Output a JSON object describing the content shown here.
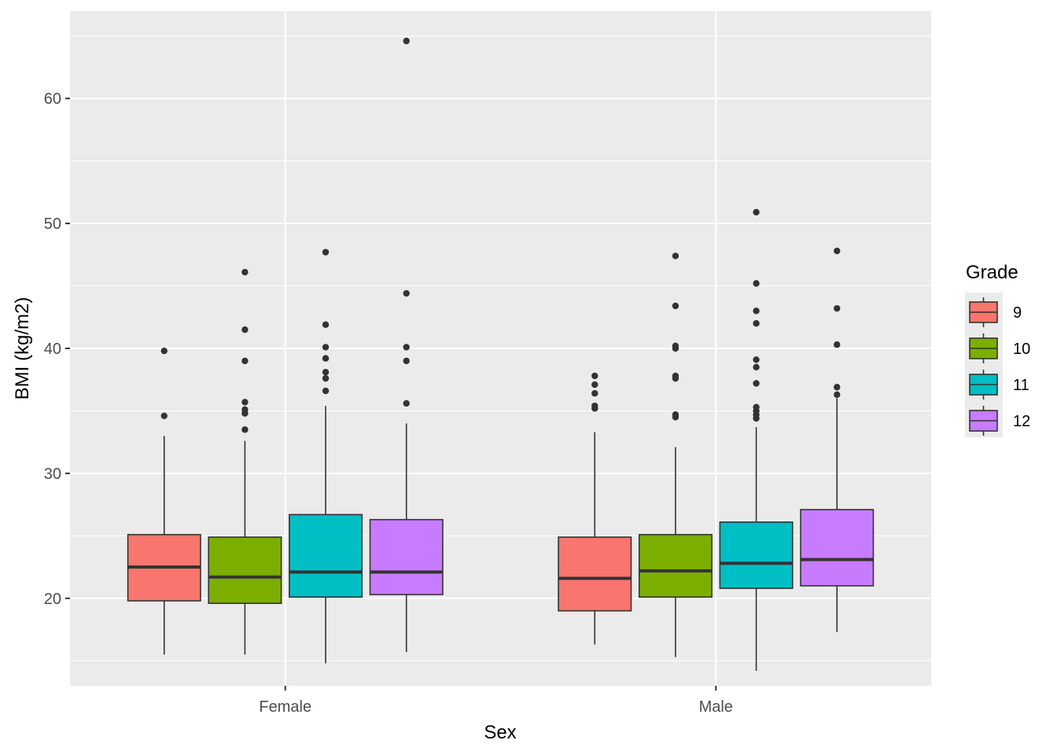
{
  "chart_data": {
    "type": "boxplot",
    "title": "",
    "xlabel": "Sex",
    "ylabel": "BMI (kg/m2)",
    "categories": [
      "Female",
      "Male"
    ],
    "ylim": [
      13.0,
      67.0
    ],
    "yticks": [
      20,
      30,
      40,
      50,
      60
    ],
    "grid": true,
    "legend": {
      "title": "Grade",
      "position": "right",
      "entries": [
        "9",
        "10",
        "11",
        "12"
      ]
    },
    "colors": {
      "9": "#F8766D",
      "10": "#7CAE00",
      "11": "#00BFC4",
      "12": "#C77CFF",
      "panel": "#EBEBEB",
      "grid": "#FFFFFF",
      "outline": "#333333"
    },
    "series": [
      {
        "name": "9",
        "boxes": [
          {
            "category": "Female",
            "whisker_low": 15.5,
            "q1": 19.8,
            "median": 22.5,
            "q3": 25.1,
            "whisker_high": 33.0,
            "outliers": [
              34.6,
              39.8
            ]
          },
          {
            "category": "Male",
            "whisker_low": 16.3,
            "q1": 19.0,
            "median": 21.6,
            "q3": 24.9,
            "whisker_high": 33.3,
            "outliers": [
              35.2,
              35.4,
              36.4,
              37.1,
              37.8
            ]
          }
        ]
      },
      {
        "name": "10",
        "boxes": [
          {
            "category": "Female",
            "whisker_low": 15.5,
            "q1": 19.6,
            "median": 21.7,
            "q3": 24.9,
            "whisker_high": 32.6,
            "outliers": [
              33.5,
              34.8,
              35.1,
              35.7,
              39.0,
              41.5,
              46.1
            ]
          },
          {
            "category": "Male",
            "whisker_low": 15.3,
            "q1": 20.1,
            "median": 22.2,
            "q3": 25.1,
            "whisker_high": 32.1,
            "outliers": [
              34.5,
              34.7,
              37.6,
              37.8,
              40.0,
              40.2,
              43.4,
              47.4
            ]
          }
        ]
      },
      {
        "name": "11",
        "boxes": [
          {
            "category": "Female",
            "whisker_low": 14.8,
            "q1": 20.1,
            "median": 22.1,
            "q3": 26.7,
            "whisker_high": 35.4,
            "outliers": [
              36.6,
              37.6,
              38.1,
              39.2,
              40.1,
              41.9,
              47.7
            ]
          },
          {
            "category": "Male",
            "whisker_low": 14.2,
            "q1": 20.8,
            "median": 22.8,
            "q3": 26.1,
            "whisker_high": 33.7,
            "outliers": [
              34.4,
              34.7,
              35.0,
              35.3,
              37.2,
              38.5,
              39.1,
              42.0,
              43.0,
              45.2,
              50.9
            ]
          }
        ]
      },
      {
        "name": "12",
        "boxes": [
          {
            "category": "Female",
            "whisker_low": 15.7,
            "q1": 20.3,
            "median": 22.1,
            "q3": 26.3,
            "whisker_high": 34.0,
            "outliers": [
              35.6,
              39.0,
              40.1,
              44.4,
              64.6
            ]
          },
          {
            "category": "Male",
            "whisker_low": 17.3,
            "q1": 21.0,
            "median": 23.1,
            "q3": 27.1,
            "whisker_high": 36.0,
            "outliers": [
              36.3,
              36.9,
              40.3,
              43.2,
              47.8
            ]
          }
        ]
      }
    ]
  }
}
